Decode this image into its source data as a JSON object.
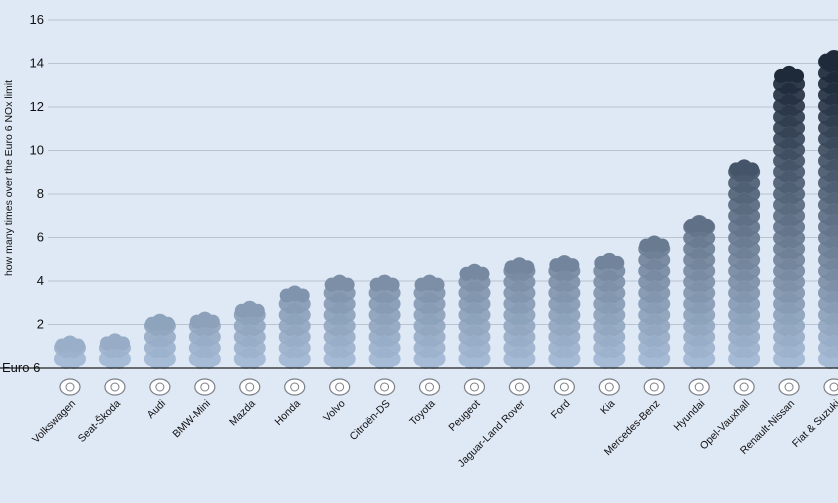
{
  "chart_data": {
    "type": "bar",
    "ylabel": "how many times over the Euro 6 NOx limit",
    "baseline_label": "Euro 6",
    "ylim": [
      0,
      16
    ],
    "yticks": [
      2,
      4,
      6,
      8,
      10,
      12,
      14,
      16
    ],
    "grid": true,
    "categories": [
      "Volkswagen",
      "Seat-Škoda",
      "Audi",
      "BMW-Mini",
      "Mazda",
      "Honda",
      "Volvo",
      "Citroën-DS",
      "Toyota",
      "Peugeot",
      "Jaguar-Land Rover",
      "Ford",
      "Kia",
      "Mercedes-Benz",
      "Hyundai",
      "Opel-Vauxhall",
      "Renault-Nissan",
      "Fiat & Suzuki"
    ],
    "values": [
      1.4,
      1.5,
      2.4,
      2.5,
      3.0,
      3.7,
      4.2,
      4.2,
      4.2,
      4.7,
      5.0,
      5.1,
      5.2,
      6.0,
      6.9,
      9.5,
      13.8,
      14.5
    ],
    "logo_icons": [
      "volkswagen-logo-icon",
      "seat-skoda-logo-icon",
      "audi-logo-icon",
      "bmw-mini-logo-icon",
      "mazda-logo-icon",
      "honda-logo-icon",
      "volvo-logo-icon",
      "citroen-ds-logo-icon",
      "toyota-logo-icon",
      "peugeot-logo-icon",
      "jaguar-land-rover-logo-icon",
      "ford-logo-icon",
      "kia-logo-icon",
      "mercedes-benz-logo-icon",
      "hyundai-logo-icon",
      "opel-vauxhall-logo-icon",
      "renault-nissan-logo-icon",
      "fiat-suzuki-logo-icon"
    ],
    "colors": {
      "background": "#dfe8f5",
      "grid": "#b9c3d1",
      "baseline": "#222222",
      "cloud_light": "#a7bdd9",
      "cloud_dark": "#1e2a3a"
    }
  }
}
